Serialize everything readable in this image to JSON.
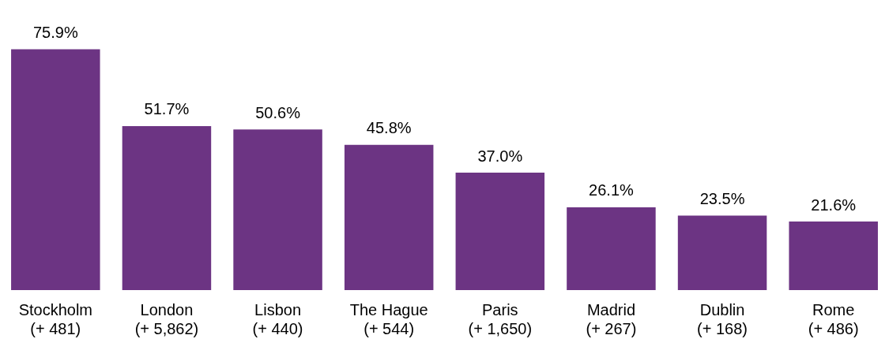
{
  "chart_data": {
    "type": "bar",
    "categories": [
      "Stockholm\n(+ 481)",
      "London\n(+ 5,862)",
      "Lisbon\n(+ 440)",
      "The Hague\n(+ 544)",
      "Paris\n(+ 1,650)",
      "Madrid\n(+ 267)",
      "Dublin\n(+ 168)",
      "Rome\n(+ 486)"
    ],
    "values": [
      75.9,
      51.7,
      50.6,
      45.8,
      37.0,
      26.1,
      23.5,
      21.6
    ],
    "value_labels": [
      "75.9%",
      "51.7%",
      "50.6%",
      "45.8%",
      "37.0%",
      "26.1%",
      "23.5%",
      "21.6%"
    ],
    "color": "#6c3483",
    "grid": false,
    "legend": false
  }
}
